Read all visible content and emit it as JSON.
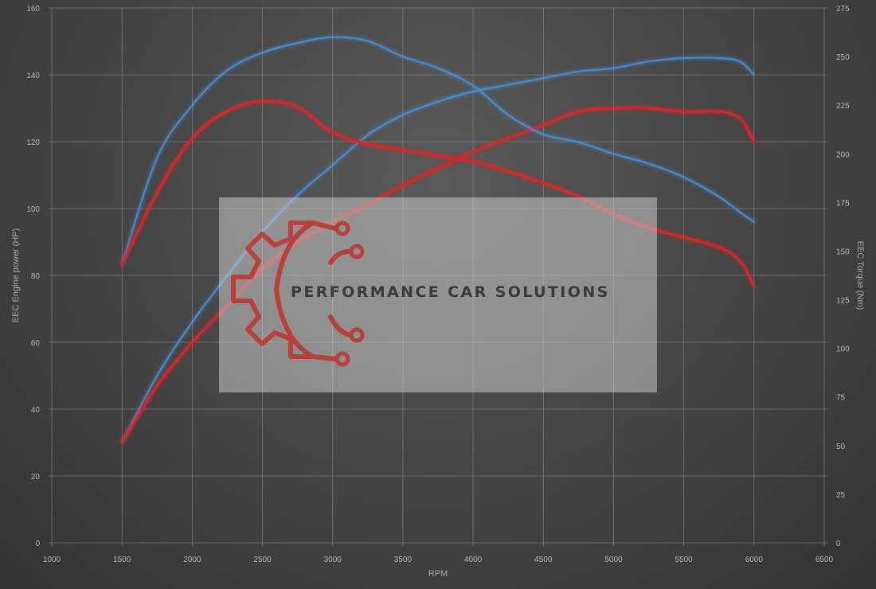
{
  "watermark": {
    "text": "PERFORMANCE CAR SOLUTIONS"
  },
  "colors": {
    "stock": "#4a90d9",
    "tuned": "#d8262a",
    "watermark_logo": "#b8403d"
  },
  "chart_data": {
    "type": "line",
    "title": "",
    "xlabel": "RPM",
    "ylabel": "EEC Engine power (HP)",
    "y2label": "EEC Torque (Nm)",
    "xlim": [
      1000,
      6500
    ],
    "ylim": [
      0,
      160
    ],
    "y2lim": [
      0,
      275
    ],
    "x_ticks": [
      1000,
      1500,
      2000,
      2500,
      3000,
      3500,
      4000,
      4500,
      5000,
      5500,
      6000,
      6500
    ],
    "y_ticks": [
      0,
      20,
      40,
      60,
      80,
      100,
      120,
      140,
      160
    ],
    "y2_ticks": [
      0,
      25,
      50,
      75,
      100,
      125,
      150,
      175,
      200,
      225,
      250,
      275
    ],
    "grid": true,
    "legend": "none",
    "series": [
      {
        "axis": "y",
        "color": "#4a90d9",
        "x": [
          1500,
          1750,
          2000,
          2250,
          2500,
          2750,
          3000,
          3250,
          3500,
          3750,
          4000,
          4250,
          4500,
          4750,
          5000,
          5250,
          5500,
          5750,
          5900,
          6000
        ],
        "values": [
          30,
          50,
          66,
          80,
          93,
          104,
          113,
          122,
          128,
          132,
          135,
          137,
          139,
          141,
          142,
          144,
          145,
          145,
          144,
          140
        ]
      },
      {
        "axis": "y",
        "color": "#d8262a",
        "x": [
          1500,
          1750,
          2000,
          2250,
          2500,
          2750,
          3000,
          3250,
          3500,
          3750,
          4000,
          4250,
          4500,
          4750,
          5000,
          5250,
          5500,
          5750,
          5900,
          6000
        ],
        "values": [
          30,
          47,
          60,
          71,
          82,
          90,
          96,
          101,
          107,
          112,
          117,
          121,
          125,
          129,
          130,
          130,
          129,
          129,
          127,
          120
        ]
      },
      {
        "axis": "y2",
        "color": "#4a90d9",
        "x": [
          1500,
          1750,
          2000,
          2250,
          2500,
          2750,
          3000,
          3250,
          3500,
          3750,
          4000,
          4250,
          4500,
          4750,
          5000,
          5250,
          5500,
          5750,
          5900,
          6000
        ],
        "values": [
          143,
          198,
          225,
          243,
          252,
          257,
          260,
          258,
          250,
          244,
          235,
          220,
          210,
          206,
          200,
          195,
          188,
          178,
          170,
          165
        ]
      },
      {
        "axis": "y2",
        "color": "#d8262a",
        "x": [
          1500,
          1750,
          2000,
          2250,
          2500,
          2750,
          3000,
          3250,
          3500,
          3750,
          4000,
          4250,
          4500,
          4750,
          5000,
          5250,
          5500,
          5750,
          5900,
          6000
        ],
        "values": [
          143,
          180,
          208,
          222,
          227,
          224,
          211,
          205,
          202,
          199,
          196,
          191,
          185,
          178,
          169,
          162,
          157,
          152,
          145,
          132
        ]
      }
    ]
  }
}
